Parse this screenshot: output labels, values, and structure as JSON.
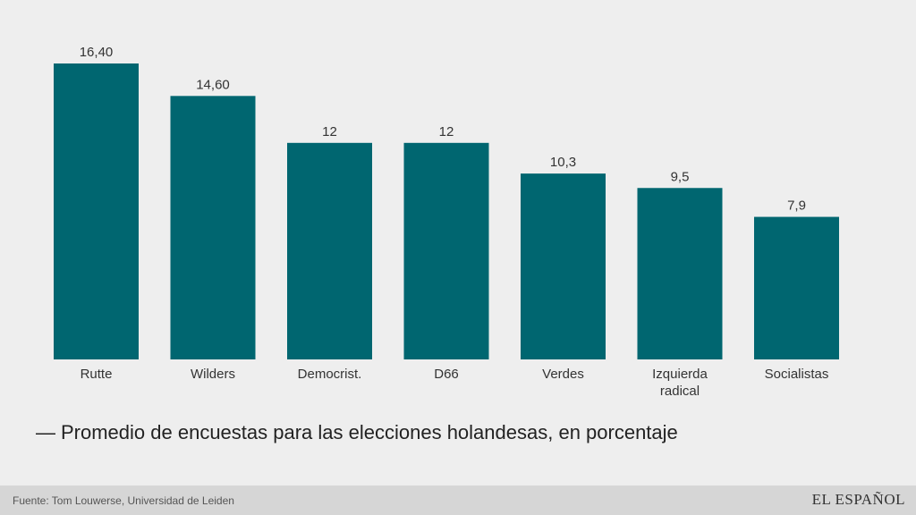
{
  "chart_data": {
    "type": "bar",
    "categories": [
      "Rutte",
      "Wilders",
      "Democrist.",
      "D66",
      "Verdes",
      "Izquierda radical",
      "Socialistas"
    ],
    "category_lines": [
      [
        "Rutte"
      ],
      [
        "Wilders"
      ],
      [
        "Democrist."
      ],
      [
        "D66"
      ],
      [
        "Verdes"
      ],
      [
        "Izquierda",
        "radical"
      ],
      [
        "Socialistas"
      ]
    ],
    "values": [
      16.4,
      14.6,
      12,
      12,
      10.3,
      9.5,
      7.9
    ],
    "value_labels": [
      "16,40",
      "14,60",
      "12",
      "12",
      "10,3",
      "9,5",
      "7,9"
    ],
    "title": "Promedio de encuestas para las elecciones holandesas, en porcentaje",
    "xlabel": "",
    "ylabel": "",
    "ylim": [
      0,
      16.4
    ],
    "grid": false,
    "bar_color": "#006670"
  },
  "caption": {
    "dash": "—",
    "text": "Promedio de encuestas para las elecciones holandesas, en porcentaje"
  },
  "footer": {
    "source": "Fuente: Tom Louwerse, Universidad de Leiden",
    "brand": "EL ESPAÑOL"
  }
}
